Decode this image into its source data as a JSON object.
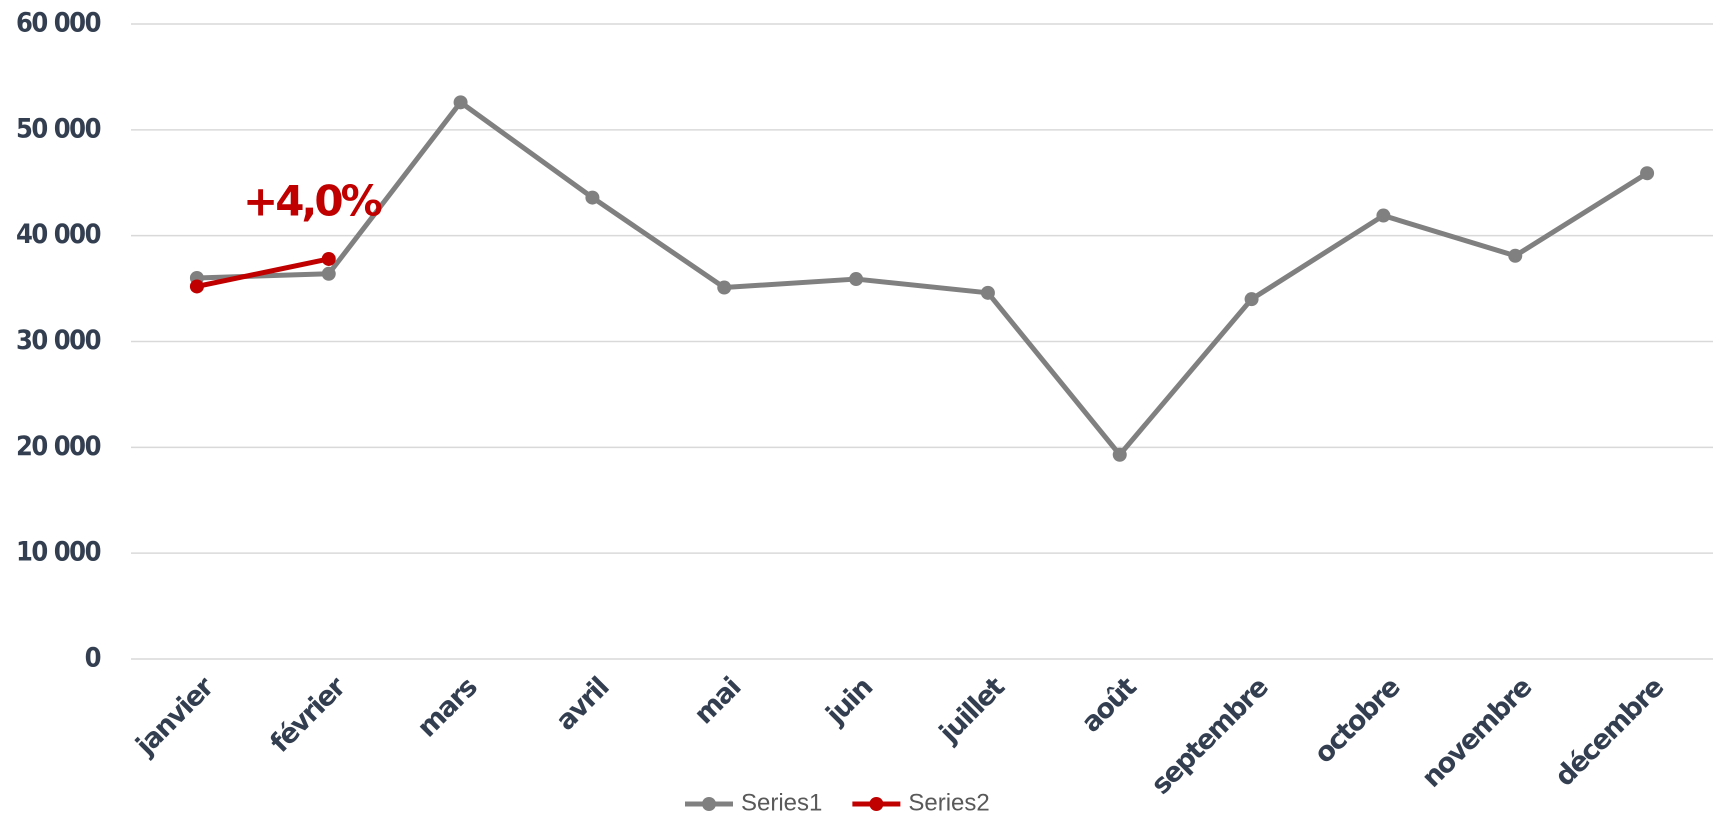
{
  "chart_data": {
    "type": "line",
    "categories": [
      "janvier",
      "février",
      "mars",
      "avril",
      "mai",
      "juin",
      "juillet",
      "août",
      "septembre",
      "octobre",
      "novembre",
      "décembre"
    ],
    "series": [
      {
        "name": "Series1",
        "color": "#808080",
        "values": [
          36000,
          36400,
          52600,
          43600,
          35100,
          35900,
          34600,
          19300,
          34000,
          41900,
          38100,
          45900
        ]
      },
      {
        "name": "Series2",
        "color": "#c00000",
        "values": [
          35200,
          37800,
          null,
          null,
          null,
          null,
          null,
          null,
          null,
          null,
          null,
          null
        ]
      }
    ],
    "annotation": "+4,0%",
    "ylim": [
      0,
      60000
    ],
    "yticks": [
      0,
      {
        "value": 10000,
        "label": "10 000"
      },
      {
        "value": 20000,
        "label": "20 000"
      },
      {
        "value": 30000,
        "label": "30 000"
      },
      {
        "value": 40000,
        "label": "40 000"
      },
      {
        "value": 50000,
        "label": "50 000"
      },
      {
        "value": 60000,
        "label": "60 000"
      }
    ],
    "grid": true,
    "legend": "bottom"
  }
}
